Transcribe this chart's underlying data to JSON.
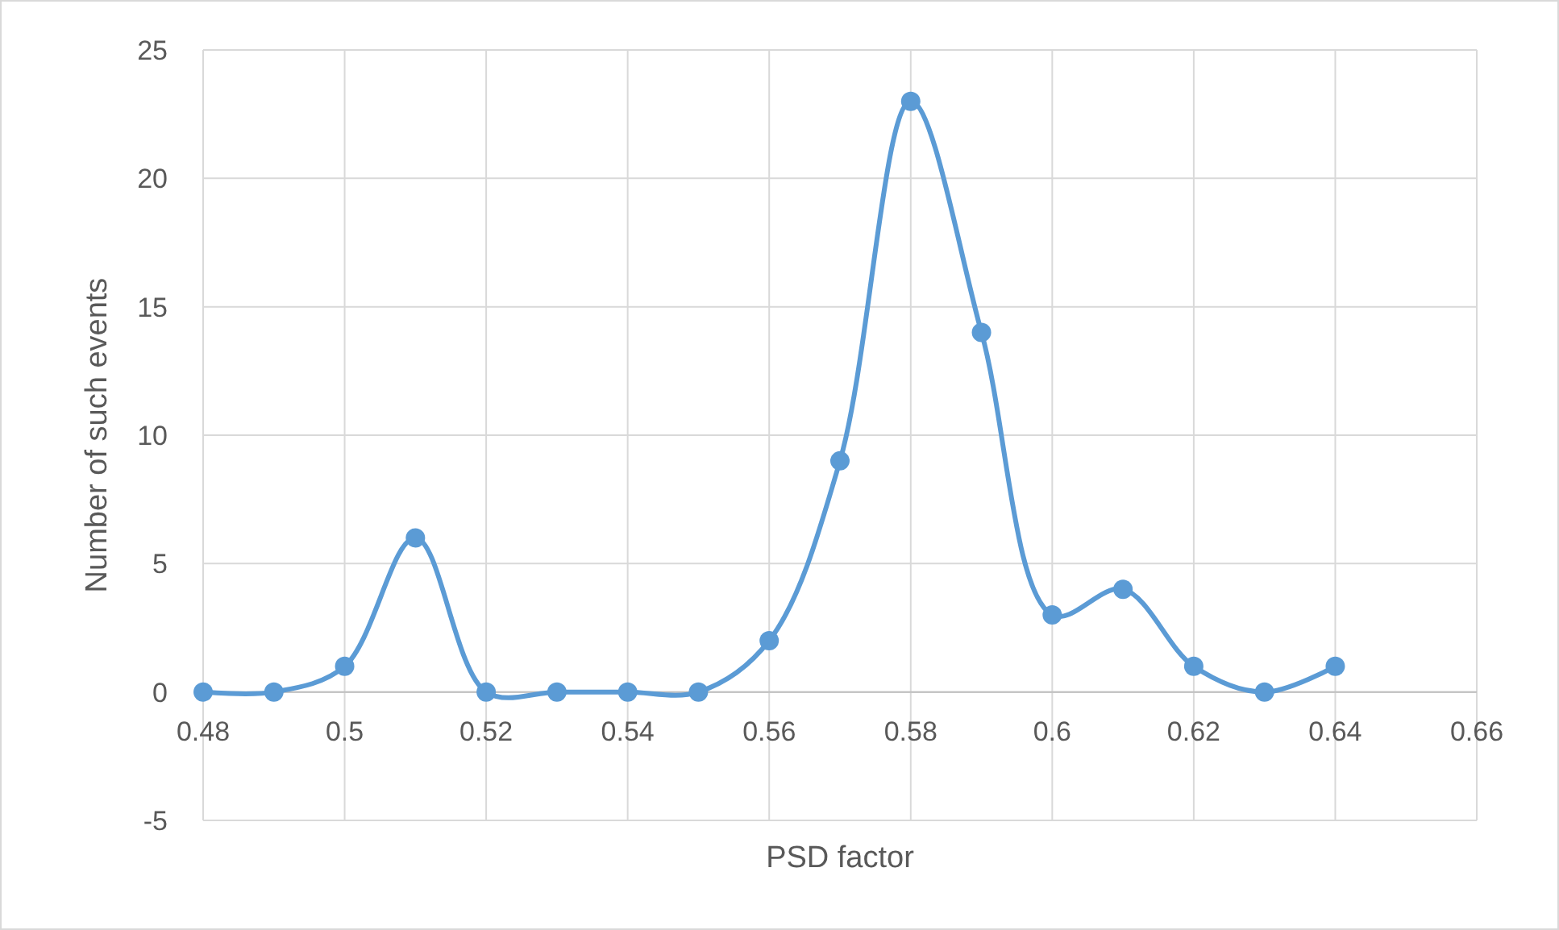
{
  "chart_data": {
    "type": "line",
    "xlabel": "PSD factor",
    "ylabel": "Number of such events",
    "x": [
      0.48,
      0.49,
      0.5,
      0.51,
      0.52,
      0.53,
      0.54,
      0.55,
      0.56,
      0.57,
      0.58,
      0.59,
      0.6,
      0.61,
      0.62,
      0.63,
      0.64
    ],
    "series": [
      {
        "color": "#5b9bd5",
        "values": [
          0,
          0,
          1,
          6,
          0,
          0,
          0,
          0,
          2,
          9,
          23,
          14,
          3,
          4,
          1,
          0,
          1
        ]
      }
    ],
    "xlim": [
      0.48,
      0.66
    ],
    "xticks": [
      0.48,
      0.5,
      0.52,
      0.54,
      0.56,
      0.58,
      0.6,
      0.62,
      0.64,
      0.66
    ],
    "ylim": [
      -5,
      25
    ],
    "yticks": [
      -5,
      0,
      5,
      10,
      15,
      20,
      25
    ],
    "grid": true,
    "marker": "circle",
    "line_style": "solid"
  }
}
